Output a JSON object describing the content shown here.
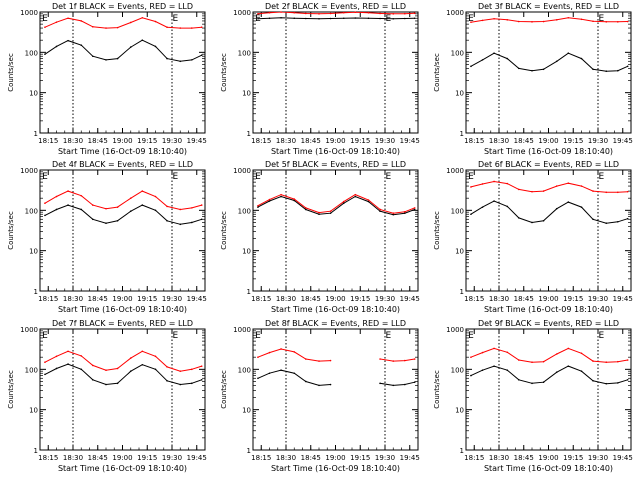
{
  "chart_data": [
    {
      "type": "line",
      "title": "Det 1f BLACK = Events, RED = LLD",
      "ylabel": "Counts/sec",
      "xlabel": "Start Time (16-Oct-09 18:10:40)",
      "yscale": "log",
      "ylim": [
        1,
        1000
      ],
      "y_ticks": [
        "1",
        "10",
        "100",
        "1000"
      ],
      "xlim": [
        "18:10",
        "19:50"
      ],
      "x_ticks": [
        "18:15",
        "18:30",
        "18:45",
        "19:00",
        "19:15",
        "19:30",
        "19:45"
      ],
      "vlines": [
        "18:30",
        "19:30"
      ],
      "markers": [
        "E",
        "E"
      ],
      "series": [
        {
          "color": "#000000",
          "x": [
            "18:13",
            "18:20",
            "18:27",
            "18:35",
            "18:42",
            "18:50",
            "18:57",
            "19:05",
            "19:12",
            "19:20",
            "19:27",
            "19:35",
            "19:42",
            "19:48"
          ],
          "values": [
            90,
            140,
            195,
            150,
            80,
            65,
            70,
            135,
            200,
            140,
            70,
            60,
            65,
            85
          ]
        },
        {
          "color": "#ff0000",
          "x": [
            "18:13",
            "18:20",
            "18:27",
            "18:35",
            "18:42",
            "18:50",
            "18:57",
            "19:05",
            "19:12",
            "19:20",
            "19:27",
            "19:35",
            "19:42",
            "19:48"
          ],
          "values": [
            420,
            560,
            700,
            600,
            430,
            400,
            410,
            550,
            720,
            580,
            420,
            400,
            400,
            420
          ]
        }
      ]
    },
    {
      "type": "line",
      "title": "Det 2f BLACK = Events, RED = LLD",
      "ylabel": "Counts/sec",
      "xlabel": "Start Time (16-Oct-09 18:10:40)",
      "yscale": "log",
      "ylim": [
        1,
        1000
      ],
      "y_ticks": [
        "1",
        "10",
        "100",
        "1000"
      ],
      "xlim": [
        "18:10",
        "19:50"
      ],
      "x_ticks": [
        "18:15",
        "18:30",
        "18:45",
        "19:00",
        "19:15",
        "19:30",
        "19:45"
      ],
      "vlines": [
        "18:30",
        "19:30"
      ],
      "markers": [
        "E",
        "E"
      ],
      "series": [
        {
          "color": "#000000",
          "x": [
            "18:13",
            "18:20",
            "18:27",
            "18:35",
            "18:42",
            "18:50",
            "18:57",
            "19:05",
            "19:12",
            "19:20",
            "19:27",
            "19:35",
            "19:42",
            "19:48"
          ],
          "values": [
            680,
            700,
            720,
            700,
            690,
            680,
            690,
            700,
            710,
            700,
            690,
            680,
            690,
            700
          ]
        },
        {
          "color": "#ff0000",
          "x": [
            "18:13",
            "18:20",
            "18:27",
            "18:35",
            "18:42",
            "18:50",
            "18:57",
            "19:05",
            "19:12",
            "19:20",
            "19:27",
            "19:35",
            "19:42",
            "19:48"
          ],
          "values": [
            900,
            960,
            1000,
            960,
            920,
            900,
            920,
            960,
            990,
            960,
            920,
            900,
            910,
            930
          ]
        }
      ]
    },
    {
      "type": "line",
      "title": "Det 3f BLACK = Events, RED = LLD",
      "ylabel": "Counts/sec",
      "xlabel": "Start Time (16-Oct-09 18:10:40)",
      "yscale": "log",
      "ylim": [
        1,
        1000
      ],
      "y_ticks": [
        "1",
        "10",
        "100",
        "1000"
      ],
      "xlim": [
        "18:10",
        "19:50"
      ],
      "x_ticks": [
        "18:15",
        "18:30",
        "18:45",
        "19:00",
        "19:15",
        "19:30",
        "19:45"
      ],
      "vlines": [
        "18:30",
        "19:30"
      ],
      "markers": [
        "E",
        "E"
      ],
      "series": [
        {
          "color": "#000000",
          "x": [
            "18:13",
            "18:20",
            "18:27",
            "18:35",
            "18:42",
            "18:50",
            "18:57",
            "19:05",
            "19:12",
            "19:20",
            "19:27",
            "19:35",
            "19:42",
            "19:48"
          ],
          "values": [
            45,
            65,
            95,
            70,
            40,
            35,
            38,
            60,
            95,
            70,
            38,
            34,
            35,
            45
          ]
        },
        {
          "color": "#ff0000",
          "x": [
            "18:13",
            "18:20",
            "18:27",
            "18:35",
            "18:42",
            "18:50",
            "18:57",
            "19:05",
            "19:12",
            "19:20",
            "19:27",
            "19:35",
            "19:42",
            "19:48"
          ],
          "values": [
            560,
            620,
            680,
            640,
            580,
            570,
            580,
            640,
            720,
            660,
            590,
            570,
            570,
            580
          ]
        }
      ]
    },
    {
      "type": "line",
      "title": "Det 4f BLACK = Events, RED = LLD",
      "ylabel": "Counts/sec",
      "xlabel": "Start Time (16-Oct-09 18:10:40)",
      "yscale": "log",
      "ylim": [
        1,
        1000
      ],
      "y_ticks": [
        "1",
        "10",
        "100",
        "1000"
      ],
      "xlim": [
        "18:10",
        "19:50"
      ],
      "x_ticks": [
        "18:15",
        "18:30",
        "18:45",
        "19:00",
        "19:15",
        "19:30",
        "19:45"
      ],
      "vlines": [
        "18:30",
        "19:30"
      ],
      "markers": [
        "E",
        "E"
      ],
      "series": [
        {
          "color": "#000000",
          "x": [
            "18:13",
            "18:20",
            "18:27",
            "18:35",
            "18:42",
            "18:50",
            "18:57",
            "19:05",
            "19:12",
            "19:20",
            "19:27",
            "19:35",
            "19:42",
            "19:48"
          ],
          "values": [
            75,
            105,
            135,
            105,
            60,
            48,
            55,
            95,
            135,
            100,
            55,
            45,
            50,
            60
          ]
        },
        {
          "color": "#ff0000",
          "x": [
            "18:13",
            "18:20",
            "18:27",
            "18:35",
            "18:42",
            "18:50",
            "18:57",
            "19:05",
            "19:12",
            "19:20",
            "19:27",
            "19:35",
            "19:42",
            "19:48"
          ],
          "values": [
            150,
            220,
            300,
            230,
            135,
            110,
            120,
            200,
            300,
            220,
            125,
            105,
            115,
            135
          ]
        }
      ]
    },
    {
      "type": "line",
      "title": "Det 5f BLACK = Events, RED = LLD",
      "ylabel": "Counts/sec",
      "xlabel": "Start Time (16-Oct-09 18:10:40)",
      "yscale": "log",
      "ylim": [
        1,
        1000
      ],
      "y_ticks": [
        "1",
        "10",
        "100",
        "1000"
      ],
      "xlim": [
        "18:10",
        "19:50"
      ],
      "x_ticks": [
        "18:15",
        "18:30",
        "18:45",
        "19:00",
        "19:15",
        "19:30",
        "19:45"
      ],
      "vlines": [
        "18:30",
        "19:30"
      ],
      "markers": [
        "E",
        "E"
      ],
      "series": [
        {
          "color": "#000000",
          "x": [
            "18:13",
            "18:20",
            "18:27",
            "18:35",
            "18:42",
            "18:50",
            "18:57",
            "19:05",
            "19:12",
            "19:20",
            "19:27",
            "19:35",
            "19:42",
            "19:48"
          ],
          "values": [
            120,
            170,
            220,
            175,
            105,
            80,
            85,
            150,
            220,
            165,
            95,
            78,
            85,
            105
          ]
        },
        {
          "color": "#ff0000",
          "x": [
            "18:13",
            "18:20",
            "18:27",
            "18:35",
            "18:42",
            "18:50",
            "18:57",
            "19:05",
            "19:12",
            "19:20",
            "19:27",
            "19:35",
            "19:42",
            "19:48"
          ],
          "values": [
            130,
            185,
            245,
            190,
            115,
            88,
            95,
            165,
            245,
            180,
            105,
            85,
            92,
            115
          ]
        }
      ]
    },
    {
      "type": "line",
      "title": "Det 6f BLACK = Events, RED = LLD",
      "ylabel": "Counts/sec",
      "xlabel": "Start Time (16-Oct-09 18:10:40)",
      "yscale": "log",
      "ylim": [
        1,
        1000
      ],
      "y_ticks": [
        "1",
        "10",
        "100",
        "1000"
      ],
      "xlim": [
        "18:10",
        "19:50"
      ],
      "x_ticks": [
        "18:15",
        "18:30",
        "18:45",
        "19:00",
        "19:15",
        "19:30",
        "19:45"
      ],
      "vlines": [
        "18:30",
        "19:30"
      ],
      "markers": [
        "E",
        "E"
      ],
      "series": [
        {
          "color": "#000000",
          "x": [
            "18:13",
            "18:20",
            "18:27",
            "18:35",
            "18:42",
            "18:50",
            "18:57",
            "19:05",
            "19:12",
            "19:20",
            "19:27",
            "19:35",
            "19:42",
            "19:48"
          ],
          "values": [
            80,
            120,
            170,
            125,
            65,
            50,
            55,
            110,
            160,
            120,
            60,
            48,
            52,
            62
          ]
        },
        {
          "color": "#ff0000",
          "x": [
            "18:13",
            "18:20",
            "18:27",
            "18:35",
            "18:42",
            "18:50",
            "18:57",
            "19:05",
            "19:12",
            "19:20",
            "19:27",
            "19:35",
            "19:42",
            "19:48"
          ],
          "values": [
            380,
            450,
            520,
            460,
            330,
            290,
            300,
            400,
            470,
            400,
            300,
            280,
            280,
            290
          ]
        }
      ]
    },
    {
      "type": "line",
      "title": "Det 7f BLACK = Events, RED = LLD",
      "ylabel": "Counts/sec",
      "xlabel": "Start Time (16-Oct-09 18:10:40)",
      "yscale": "log",
      "ylim": [
        1,
        1000
      ],
      "y_ticks": [
        "1",
        "10",
        "100",
        "1000"
      ],
      "xlim": [
        "18:10",
        "19:50"
      ],
      "x_ticks": [
        "18:15",
        "18:30",
        "18:45",
        "19:00",
        "19:15",
        "19:30",
        "19:45"
      ],
      "vlines": [
        "18:30",
        "19:30"
      ],
      "markers": [
        "E",
        "E"
      ],
      "series": [
        {
          "color": "#000000",
          "x": [
            "18:13",
            "18:20",
            "18:27",
            "18:35",
            "18:42",
            "18:50",
            "18:57",
            "19:05",
            "19:12",
            "19:20",
            "19:27",
            "19:35",
            "19:42",
            "19:48"
          ],
          "values": [
            75,
            105,
            135,
            100,
            55,
            42,
            45,
            90,
            130,
            100,
            52,
            42,
            45,
            55
          ]
        },
        {
          "color": "#ff0000",
          "x": [
            "18:13",
            "18:20",
            "18:27",
            "18:35",
            "18:42",
            "18:50",
            "18:57",
            "19:05",
            "19:12",
            "19:20",
            "19:27",
            "19:35",
            "19:42",
            "19:48"
          ],
          "values": [
            150,
            210,
            280,
            215,
            125,
            95,
            105,
            190,
            280,
            210,
            115,
            90,
            100,
            120
          ]
        }
      ]
    },
    {
      "type": "line",
      "title": "Det 8f BLACK = Events, RED = LLD",
      "ylabel": "Counts/sec",
      "xlabel": "Start Time (16-Oct-09 18:10:40)",
      "yscale": "log",
      "ylim": [
        1,
        1000
      ],
      "y_ticks": [
        "1",
        "10",
        "100",
        "1000"
      ],
      "xlim": [
        "18:10",
        "19:50"
      ],
      "x_ticks": [
        "18:15",
        "18:30",
        "18:45",
        "19:00",
        "19:15",
        "19:30",
        "19:45"
      ],
      "vlines": [
        "18:30",
        "19:30"
      ],
      "markers": [
        "E",
        "E"
      ],
      "series": [
        {
          "color": "#000000",
          "x": [
            "18:13",
            "18:20",
            "18:27",
            "18:35",
            "18:42",
            "18:50",
            "18:57",
            "19:05",
            "19:12",
            "19:20",
            "19:27",
            "19:35",
            "19:42",
            "19:48"
          ],
          "values": [
            60,
            80,
            95,
            80,
            50,
            40,
            42,
            null,
            null,
            null,
            45,
            40,
            42,
            48
          ]
        },
        {
          "color": "#ff0000",
          "x": [
            "18:13",
            "18:20",
            "18:27",
            "18:35",
            "18:42",
            "18:50",
            "18:57",
            "19:05",
            "19:12",
            "19:20",
            "19:27",
            "19:35",
            "19:42",
            "19:48"
          ],
          "values": [
            200,
            260,
            320,
            270,
            180,
            160,
            165,
            null,
            null,
            null,
            180,
            160,
            165,
            180
          ]
        }
      ]
    },
    {
      "type": "line",
      "title": "Det 9f BLACK = Events, RED = LLD",
      "ylabel": "Counts/sec",
      "xlabel": "Start Time (16-Oct-09 18:10:40)",
      "yscale": "log",
      "ylim": [
        1,
        1000
      ],
      "y_ticks": [
        "1",
        "10",
        "100",
        "1000"
      ],
      "xlim": [
        "18:10",
        "19:50"
      ],
      "x_ticks": [
        "18:15",
        "18:30",
        "18:45",
        "19:00",
        "19:15",
        "19:30",
        "19:45"
      ],
      "vlines": [
        "18:30",
        "19:30"
      ],
      "markers": [
        "E",
        "E"
      ],
      "series": [
        {
          "color": "#000000",
          "x": [
            "18:13",
            "18:20",
            "18:27",
            "18:35",
            "18:42",
            "18:50",
            "18:57",
            "19:05",
            "19:12",
            "19:20",
            "19:27",
            "19:35",
            "19:42",
            "19:48"
          ],
          "values": [
            70,
            95,
            120,
            95,
            55,
            45,
            48,
            85,
            120,
            90,
            52,
            44,
            46,
            55
          ]
        },
        {
          "color": "#ff0000",
          "x": [
            "18:13",
            "18:20",
            "18:27",
            "18:35",
            "18:42",
            "18:50",
            "18:57",
            "19:05",
            "19:12",
            "19:20",
            "19:27",
            "19:35",
            "19:42",
            "19:48"
          ],
          "values": [
            200,
            260,
            330,
            265,
            170,
            150,
            155,
            240,
            330,
            250,
            160,
            150,
            155,
            170
          ]
        }
      ]
    }
  ]
}
